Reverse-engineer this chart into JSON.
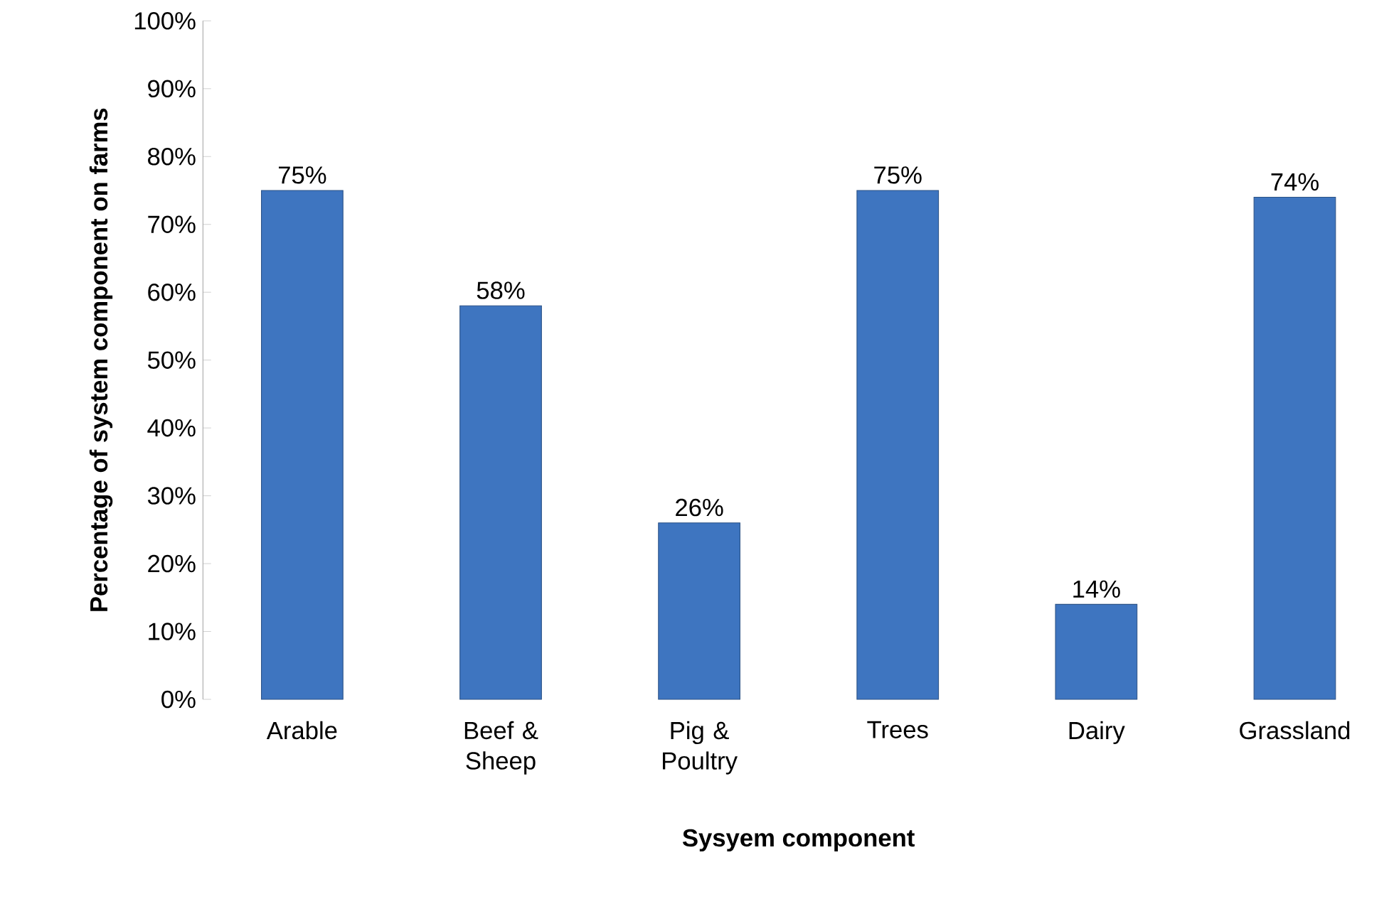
{
  "chart_data": {
    "type": "bar",
    "xlabel": "Sysyem component",
    "ylabel": "Percentage of system component on farms",
    "categories": [
      "Arable",
      "Beef & Sheep",
      "Pig & Poultry",
      "Trees",
      "Dairy",
      "Grassland"
    ],
    "values": [
      75,
      58,
      26,
      75,
      14,
      74
    ],
    "value_labels": [
      "75%",
      "58%",
      "26%",
      "75%",
      "14%",
      "74%"
    ],
    "color": "#3e75c0",
    "ylim": [
      0,
      100
    ],
    "yticks": [
      {
        "value": 0,
        "label": "0%"
      },
      {
        "value": 10,
        "label": "10%"
      },
      {
        "value": 20,
        "label": "20%"
      },
      {
        "value": 30,
        "label": "30%"
      },
      {
        "value": 40,
        "label": "40%"
      },
      {
        "value": 50,
        "label": "50%"
      },
      {
        "value": 60,
        "label": "60%"
      },
      {
        "value": 70,
        "label": "70%"
      },
      {
        "value": 80,
        "label": "80%"
      },
      {
        "value": 90,
        "label": "90%"
      },
      {
        "value": 100,
        "label": "100%"
      }
    ]
  }
}
